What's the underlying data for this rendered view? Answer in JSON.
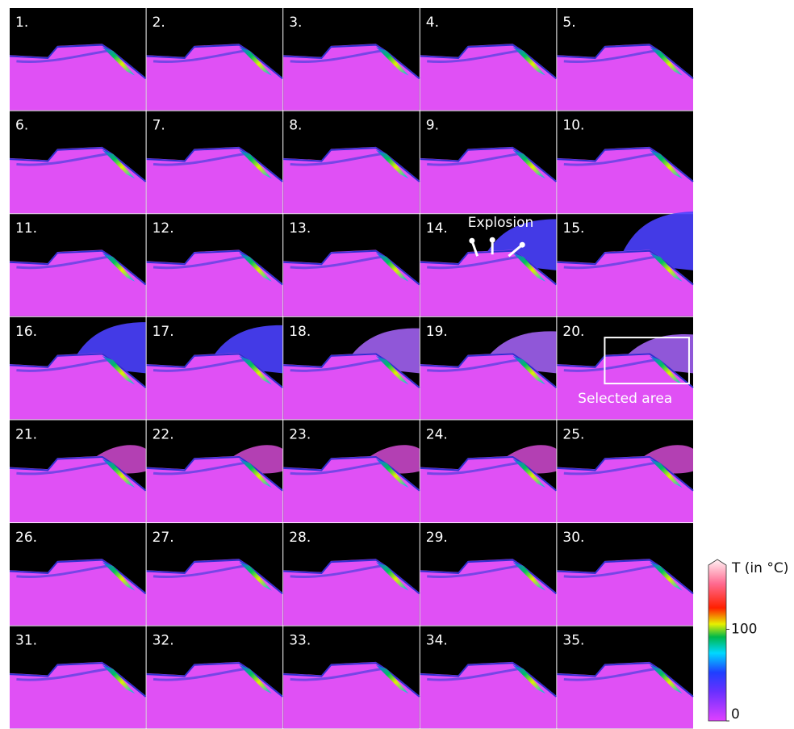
{
  "panels": [
    "1.",
    "2.",
    "3.",
    "4.",
    "5.",
    "6.",
    "7.",
    "8.",
    "9.",
    "10.",
    "11.",
    "12.",
    "13.",
    "14.",
    "15.",
    "16.",
    "17.",
    "18.",
    "19.",
    "20.",
    "21.",
    "22.",
    "23.",
    "24.",
    "25.",
    "26.",
    "27.",
    "28.",
    "29.",
    "30.",
    "31.",
    "32.",
    "33.",
    "34.",
    "35."
  ],
  "annotations": {
    "explosion": "Explosion",
    "selected_area": "Selected area"
  },
  "colorbar": {
    "label": "T (in °C)",
    "lim": [
      0,
      170
    ],
    "ticks": [
      0,
      100
    ]
  }
}
